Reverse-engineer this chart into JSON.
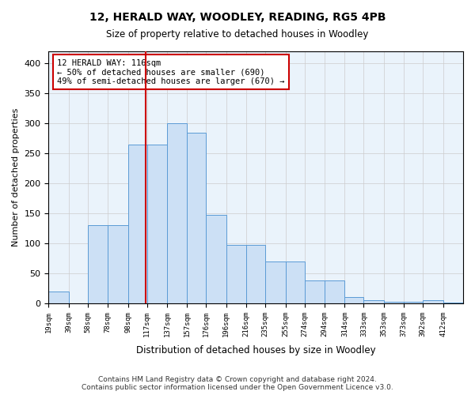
{
  "title": "12, HERALD WAY, WOODLEY, READING, RG5 4PB",
  "subtitle": "Size of property relative to detached houses in Woodley",
  "xlabel": "Distribution of detached houses by size in Woodley",
  "ylabel": "Number of detached properties",
  "bar_heights": [
    20,
    0,
    130,
    130,
    265,
    265,
    300,
    285,
    147,
    98,
    98,
    70,
    70,
    38,
    38,
    10,
    5,
    3,
    3,
    5,
    1
  ],
  "tick_labels": [
    "19sqm",
    "39sqm",
    "58sqm",
    "78sqm",
    "98sqm",
    "117sqm",
    "137sqm",
    "157sqm",
    "176sqm",
    "196sqm",
    "216sqm",
    "235sqm",
    "255sqm",
    "274sqm",
    "294sqm",
    "314sqm",
    "333sqm",
    "353sqm",
    "373sqm",
    "392sqm",
    "412sqm"
  ],
  "bar_color": "#cce0f5",
  "bar_edge_color": "#5b9bd5",
  "vline_x": 116,
  "vline_color": "#cc0000",
  "annotation_text": "12 HERALD WAY: 116sqm\n← 50% of detached houses are smaller (690)\n49% of semi-detached houses are larger (670) →",
  "annotation_box_color": "#ffffff",
  "annotation_box_edge_color": "#cc0000",
  "ylim": [
    0,
    420
  ],
  "yticks": [
    0,
    50,
    100,
    150,
    200,
    250,
    300,
    350,
    400
  ],
  "grid_color": "#cccccc",
  "background_color": "#eaf3fb",
  "footer_text": "Contains HM Land Registry data © Crown copyright and database right 2024.\nContains public sector information licensed under the Open Government Licence v3.0.",
  "bin_edges": [
    19,
    39,
    58,
    78,
    98,
    117,
    137,
    157,
    176,
    196,
    216,
    235,
    255,
    274,
    294,
    314,
    333,
    353,
    373,
    392,
    412,
    432
  ]
}
